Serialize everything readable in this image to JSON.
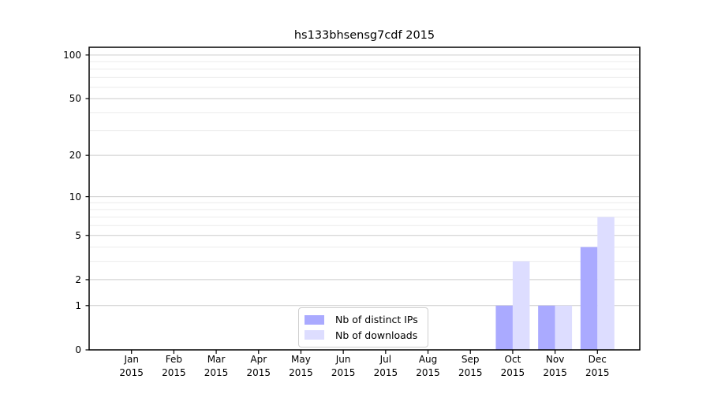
{
  "chart_data": {
    "type": "bar",
    "title": "hs133bhsensg7cdf 2015",
    "categories": [
      "Jan",
      "Feb",
      "Mar",
      "Apr",
      "May",
      "Jun",
      "Jul",
      "Aug",
      "Sep",
      "Oct",
      "Nov",
      "Dec"
    ],
    "x_year_label": "2015",
    "series": [
      {
        "name": "Nb of distinct IPs",
        "color": "#aaaaff",
        "values": [
          0,
          0,
          0,
          0,
          0,
          0,
          0,
          0,
          0,
          1,
          1,
          4
        ]
      },
      {
        "name": "Nb of downloads",
        "color": "#ddddff",
        "values": [
          0,
          0,
          0,
          0,
          0,
          0,
          0,
          0,
          0,
          3,
          1,
          7
        ]
      }
    ],
    "yscale": "log1p",
    "ylim": [
      0,
      113
    ],
    "yticks": [
      0,
      1,
      2,
      5,
      10,
      20,
      50,
      100
    ],
    "yticks_minor": [
      3,
      4,
      6,
      7,
      8,
      9,
      30,
      40,
      60,
      70,
      80,
      90
    ],
    "grid": true,
    "legend_position": "lower center",
    "colors": {
      "grid_major": "#cccccc",
      "grid_minor": "#ececec",
      "axis": "#000000",
      "background": "#ffffff"
    }
  }
}
